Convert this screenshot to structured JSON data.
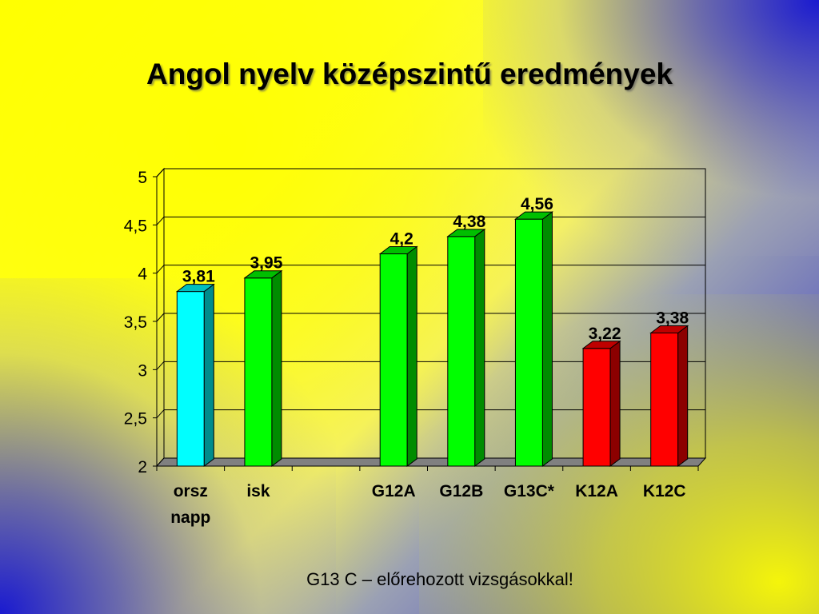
{
  "title": "Angol nyelv középszintű eredmények",
  "footnote": "G13 C – előrehozott vizsgásokkal!",
  "colors": {
    "cyan": "#00ffff",
    "green": "#00ff00",
    "red": "#ff0000",
    "grid": "#000000"
  },
  "chart_data": {
    "type": "bar",
    "categories": [
      {
        "label": [
          "orsz",
          "napp"
        ],
        "value": 3.81,
        "color": "cyan"
      },
      {
        "label": [
          "isk"
        ],
        "value": 3.95,
        "color": "green"
      },
      {
        "label": [
          ""
        ],
        "value": null,
        "color": "none"
      },
      {
        "label": [
          "G12A"
        ],
        "value": 4.2,
        "color": "green"
      },
      {
        "label": [
          "G12B"
        ],
        "value": 4.38,
        "color": "green"
      },
      {
        "label": [
          "G13C*"
        ],
        "value": 4.56,
        "color": "green"
      },
      {
        "label": [
          "K12A"
        ],
        "value": 3.22,
        "color": "red"
      },
      {
        "label": [
          "K12C"
        ],
        "value": 3.38,
        "color": "red"
      }
    ],
    "data_labels": [
      "3,81",
      "3,95",
      "",
      "4,2",
      "4,38",
      "4,56",
      "3,22",
      "3,38"
    ],
    "ylim": [
      2,
      5
    ],
    "yticks": [
      "2",
      "2,5",
      "3",
      "3,5",
      "4",
      "4,5",
      "5"
    ],
    "grid": true
  }
}
